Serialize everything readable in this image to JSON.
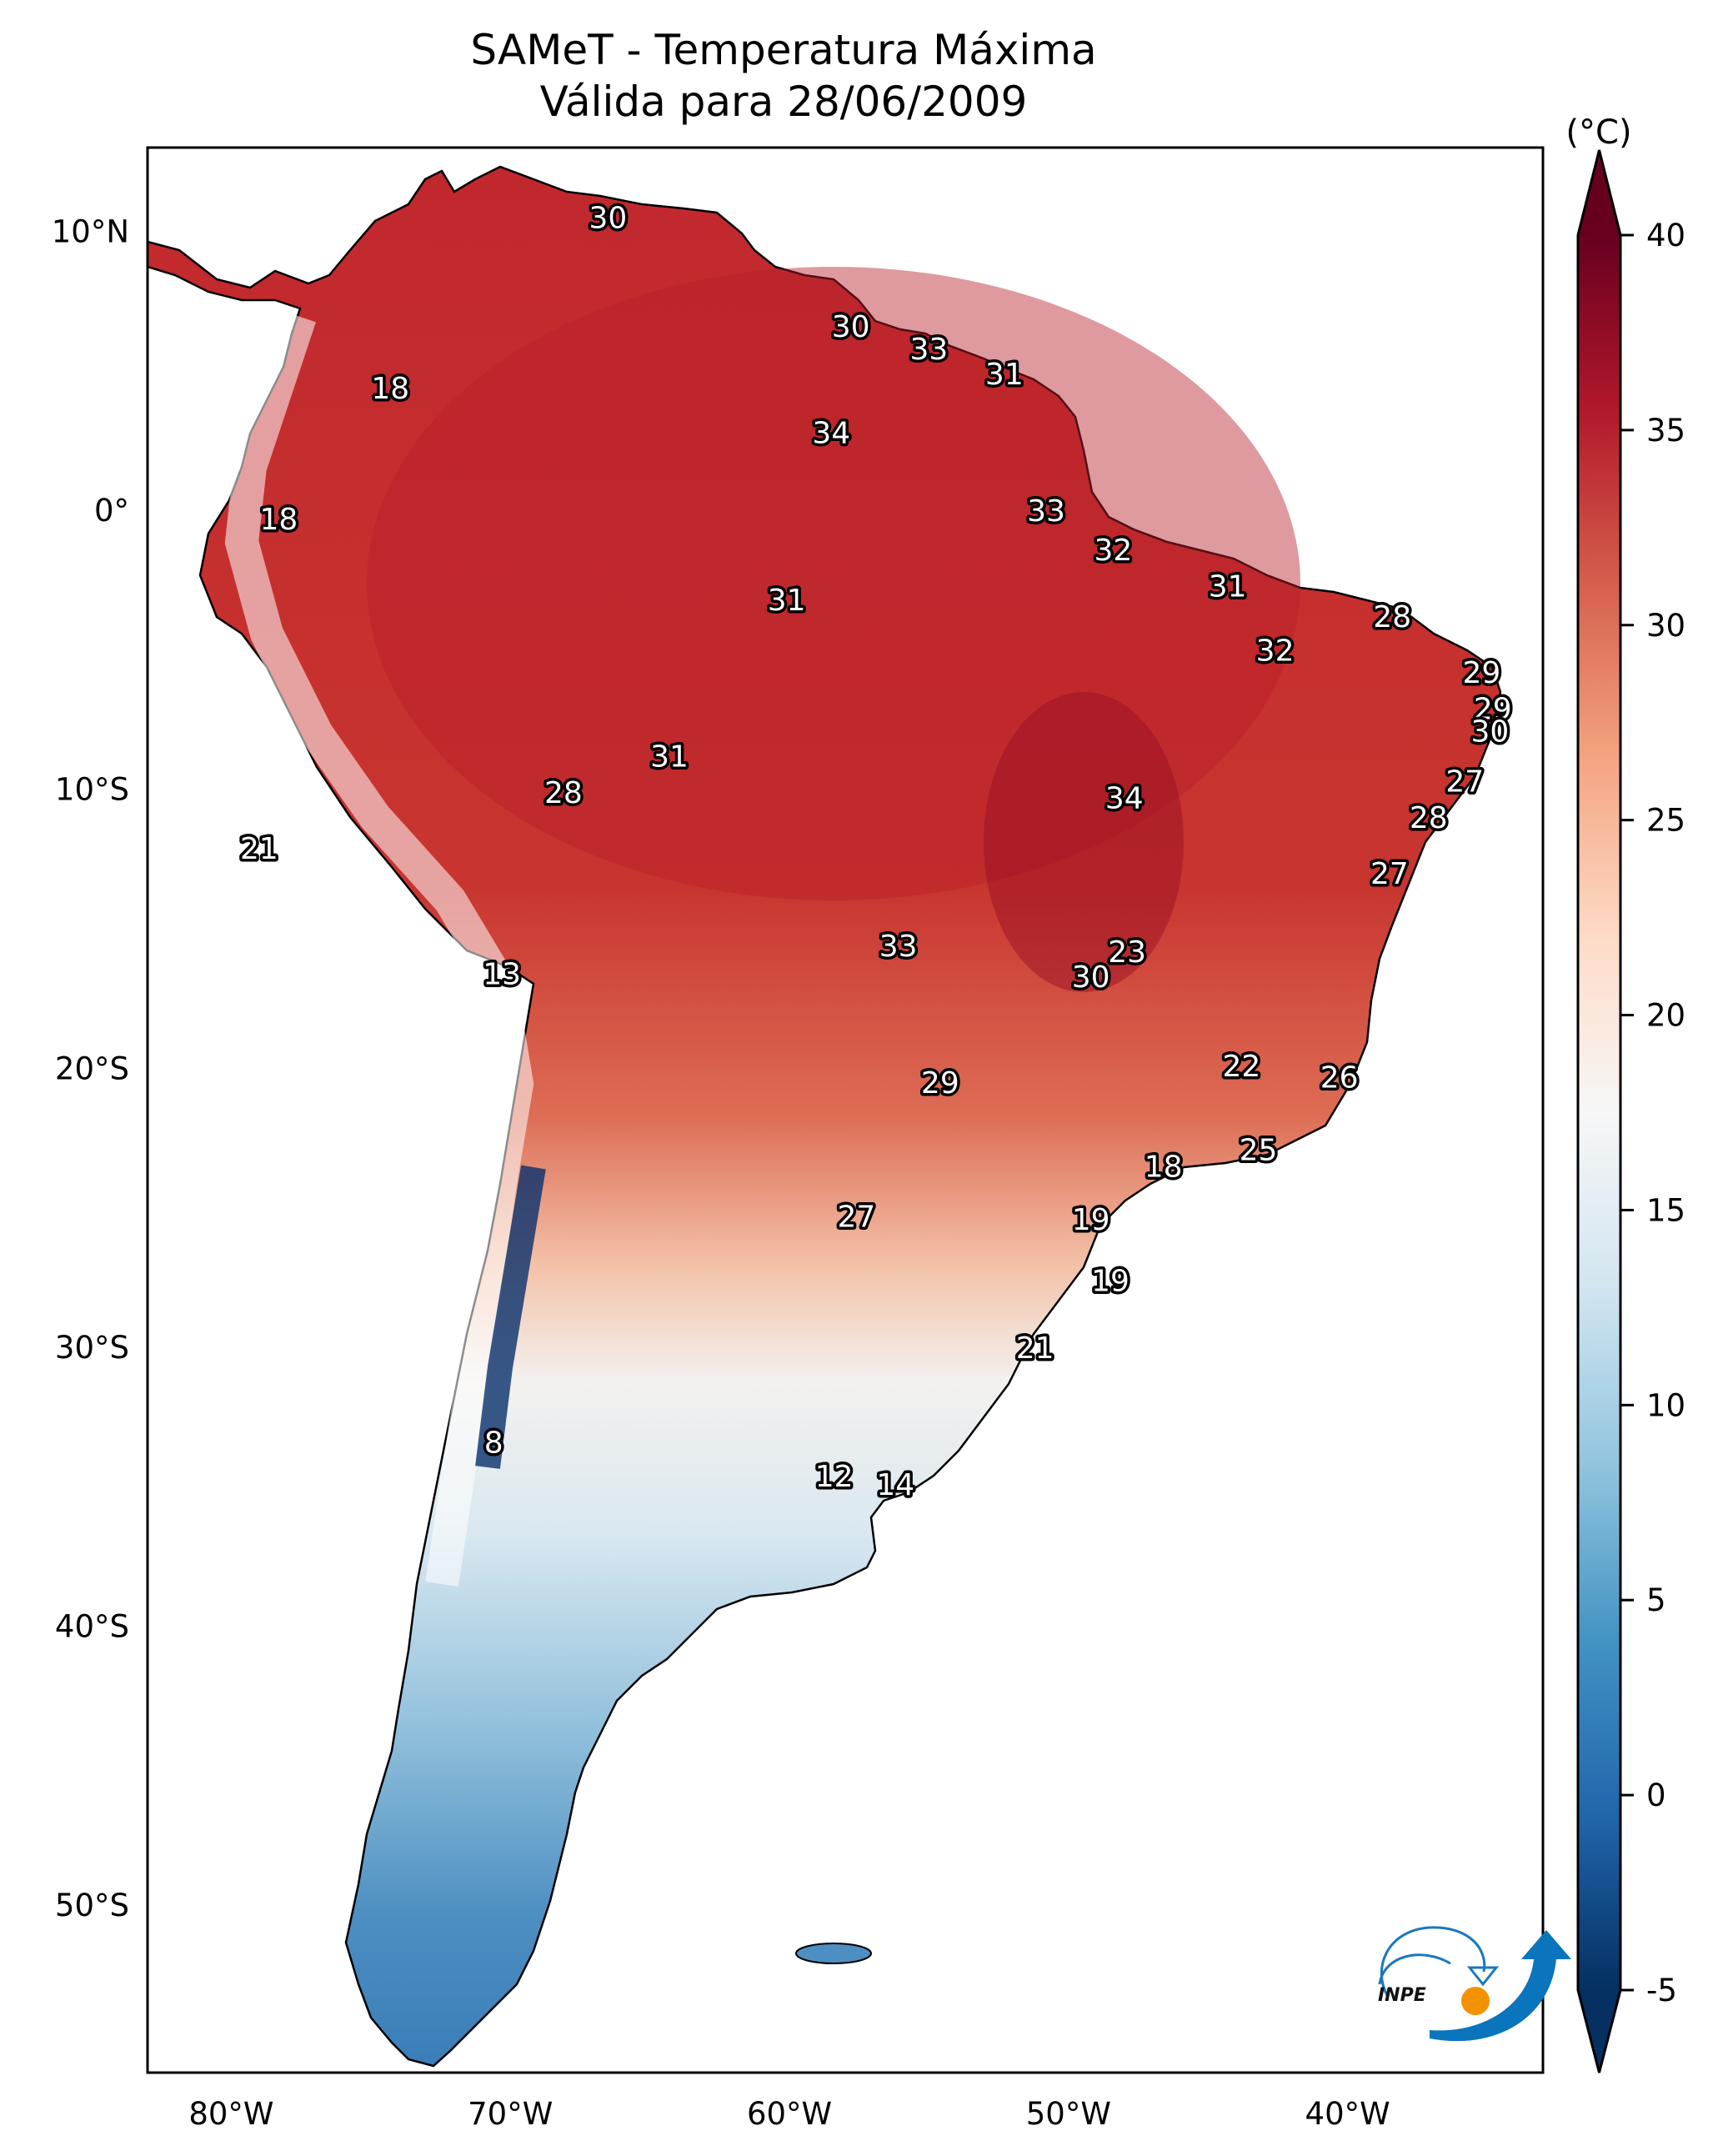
{
  "chart_data": {
    "type": "heatmap",
    "title": "SAMeT - Temperatura Máxima",
    "subtitle": "Válida para 28/06/2009",
    "xlabel": "",
    "ylabel": "",
    "projection": "PlateCarree",
    "lon_range": [
      -83,
      -33
    ],
    "lat_range": [
      -56,
      13
    ],
    "x_ticks": [
      {
        "value": -80,
        "label": "80°W"
      },
      {
        "value": -70,
        "label": "70°W"
      },
      {
        "value": -60,
        "label": "60°W"
      },
      {
        "value": -50,
        "label": "50°W"
      },
      {
        "value": -40,
        "label": "40°W"
      }
    ],
    "y_ticks": [
      {
        "value": 10,
        "label": "10°N"
      },
      {
        "value": 0,
        "label": "0°"
      },
      {
        "value": -10,
        "label": "10°S"
      },
      {
        "value": -20,
        "label": "20°S"
      },
      {
        "value": -30,
        "label": "30°S"
      },
      {
        "value": -40,
        "label": "40°S"
      },
      {
        "value": -50,
        "label": "50°S"
      }
    ],
    "colorbar": {
      "unit": "(°C)",
      "range": [
        -5,
        40
      ],
      "extend": "both",
      "colormap": "RdBu_r",
      "ticks": [
        {
          "value": 40,
          "label": "40"
        },
        {
          "value": 35,
          "label": "35"
        },
        {
          "value": 30,
          "label": "30"
        },
        {
          "value": 25,
          "label": "25"
        },
        {
          "value": 20,
          "label": "20"
        },
        {
          "value": 15,
          "label": "15"
        },
        {
          "value": 10,
          "label": "10"
        },
        {
          "value": 5,
          "label": "5"
        },
        {
          "value": 0,
          "label": "0"
        },
        {
          "value": -5,
          "label": "-5"
        }
      ],
      "colors": [
        "#053061",
        "#2166ac",
        "#4393c3",
        "#92c5de",
        "#d1e5f0",
        "#f7f7f7",
        "#fddbc7",
        "#f4a582",
        "#d6604d",
        "#b2182b",
        "#67001f"
      ]
    },
    "point_labels": [
      {
        "lon": -66.5,
        "lat": 10.5,
        "value": 30
      },
      {
        "lon": -74.3,
        "lat": 4.4,
        "value": 18
      },
      {
        "lon": -57.8,
        "lat": 6.6,
        "value": 30
      },
      {
        "lon": -55.0,
        "lat": 5.8,
        "value": 33
      },
      {
        "lon": -52.3,
        "lat": 4.9,
        "value": 31
      },
      {
        "lon": -58.5,
        "lat": 2.8,
        "value": 34
      },
      {
        "lon": -78.3,
        "lat": -0.3,
        "value": 18
      },
      {
        "lon": -50.8,
        "lat": 0.0,
        "value": 33
      },
      {
        "lon": -48.4,
        "lat": -1.4,
        "value": 32
      },
      {
        "lon": -60.1,
        "lat": -3.2,
        "value": 31
      },
      {
        "lon": -44.3,
        "lat": -2.7,
        "value": 31
      },
      {
        "lon": -38.4,
        "lat": -3.8,
        "value": 28
      },
      {
        "lon": -42.6,
        "lat": -5.0,
        "value": 32
      },
      {
        "lon": -35.2,
        "lat": -5.8,
        "value": 29
      },
      {
        "lon": -34.8,
        "lat": -7.1,
        "value": 29
      },
      {
        "lon": -34.9,
        "lat": -7.9,
        "value": 30
      },
      {
        "lon": -35.8,
        "lat": -9.7,
        "value": 27
      },
      {
        "lon": -64.3,
        "lat": -8.8,
        "value": 31
      },
      {
        "lon": -68.1,
        "lat": -10.1,
        "value": 28
      },
      {
        "lon": -48.0,
        "lat": -10.3,
        "value": 34
      },
      {
        "lon": -37.1,
        "lat": -11.0,
        "value": 28
      },
      {
        "lon": -79.0,
        "lat": -12.1,
        "value": 21
      },
      {
        "lon": -38.5,
        "lat": -13.0,
        "value": 27
      },
      {
        "lon": -56.1,
        "lat": -15.6,
        "value": 33
      },
      {
        "lon": -47.9,
        "lat": -15.8,
        "value": 23
      },
      {
        "lon": -49.2,
        "lat": -16.7,
        "value": 30
      },
      {
        "lon": -70.3,
        "lat": -16.6,
        "value": 13
      },
      {
        "lon": -43.8,
        "lat": -19.9,
        "value": 22
      },
      {
        "lon": -40.3,
        "lat": -20.3,
        "value": 26
      },
      {
        "lon": -54.6,
        "lat": -20.5,
        "value": 29
      },
      {
        "lon": -43.2,
        "lat": -22.9,
        "value": 25
      },
      {
        "lon": -46.6,
        "lat": -23.5,
        "value": 18
      },
      {
        "lon": -57.6,
        "lat": -25.3,
        "value": 27
      },
      {
        "lon": -49.2,
        "lat": -25.4,
        "value": 19
      },
      {
        "lon": -48.5,
        "lat": -27.6,
        "value": 19
      },
      {
        "lon": -51.2,
        "lat": -30.0,
        "value": 21
      },
      {
        "lon": -70.6,
        "lat": -33.4,
        "value": 8
      },
      {
        "lon": -58.4,
        "lat": -34.6,
        "value": 12
      },
      {
        "lon": -56.2,
        "lat": -34.9,
        "value": 14
      }
    ]
  },
  "logo": {
    "text": "INPE",
    "name": "INPE"
  }
}
